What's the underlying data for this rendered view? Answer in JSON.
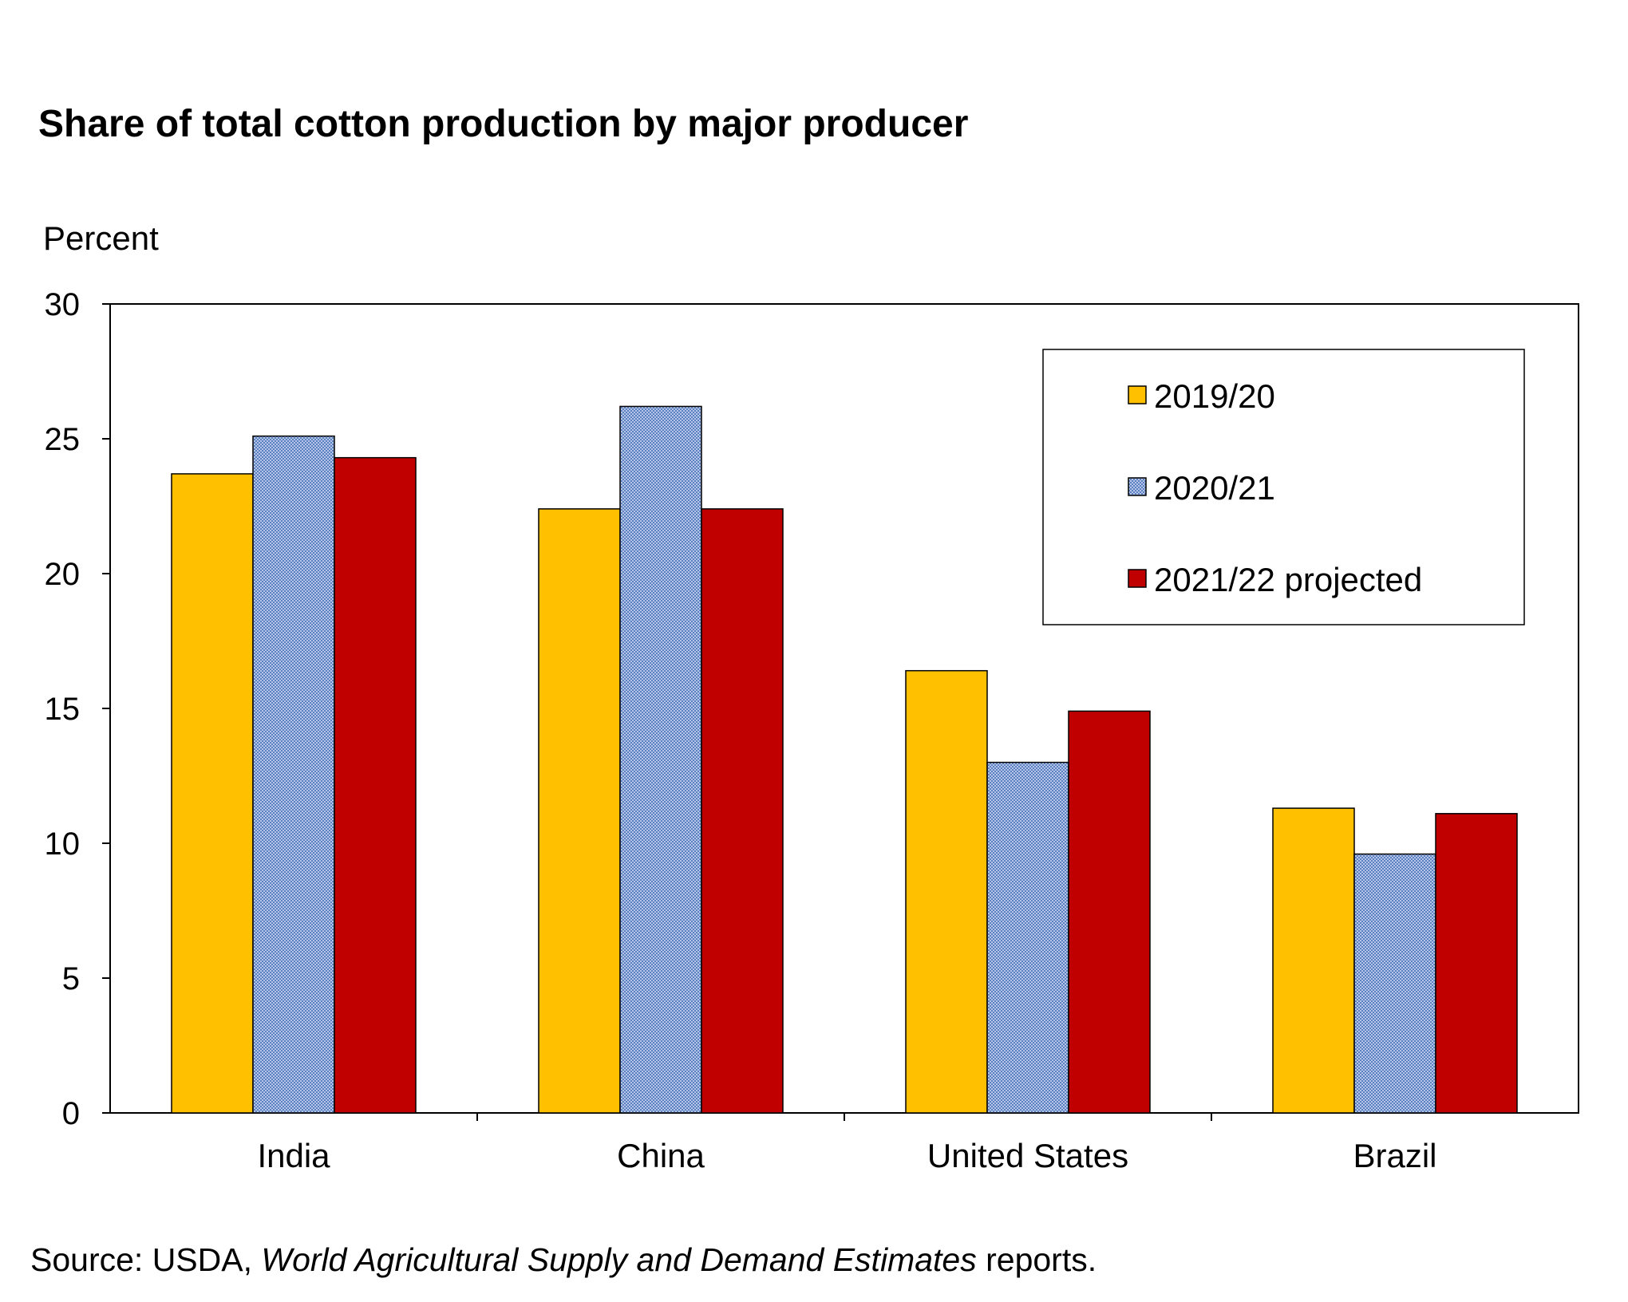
{
  "title": "Share of total cotton production by major producer",
  "source": {
    "prefix": "Source: USDA, ",
    "italic": "World Agricultural Supply and Demand Estimates",
    "suffix": " reports."
  },
  "chart_data": {
    "type": "bar",
    "ylabel": "Percent",
    "xlabel": "",
    "ylim": [
      0,
      30
    ],
    "yticks": [
      0,
      5,
      10,
      15,
      20,
      25,
      30
    ],
    "grid": false,
    "legend_position": "top-right",
    "categories": [
      "India",
      "China",
      "United States",
      "Brazil"
    ],
    "series": [
      {
        "name": "2019/20",
        "color": "#FFC000",
        "pattern": "solid",
        "values": [
          23.7,
          22.4,
          16.4,
          11.3
        ]
      },
      {
        "name": "2020/21",
        "color": "#8EA9DB",
        "pattern": "dotted",
        "values": [
          25.1,
          26.2,
          13.0,
          9.6
        ]
      },
      {
        "name": "2021/22 projected",
        "color": "#C00000",
        "pattern": "solid",
        "values": [
          24.3,
          22.4,
          14.9,
          11.1
        ]
      }
    ]
  }
}
